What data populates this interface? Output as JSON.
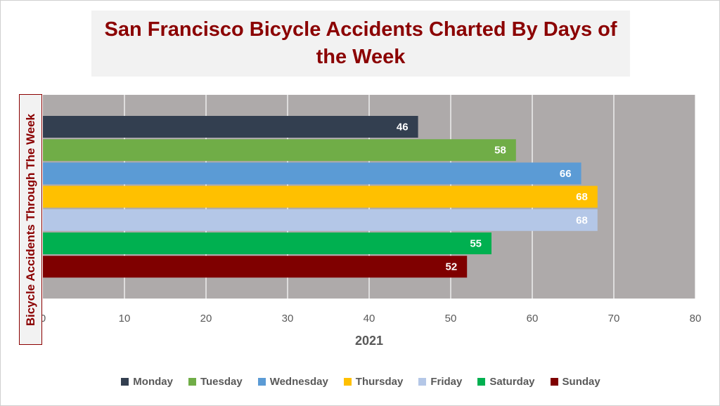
{
  "chart_data": {
    "type": "bar",
    "orientation": "horizontal",
    "title": "San Francisco Bicycle Accidents Charted By Days of the Week",
    "ylabel": "Bicycle Accidents Through The Week",
    "xlabel": "2021",
    "xlim": [
      0,
      80
    ],
    "xticks": [
      0,
      10,
      20,
      30,
      40,
      50,
      60,
      70,
      80
    ],
    "grid": true,
    "legend_position": "bottom",
    "series": [
      {
        "name": "Monday",
        "value": 46,
        "color": "#333f50"
      },
      {
        "name": "Tuesday",
        "value": 58,
        "color": "#70ad47"
      },
      {
        "name": "Wednesday",
        "value": 66,
        "color": "#5b9bd5"
      },
      {
        "name": "Thursday",
        "value": 68,
        "color": "#ffc000"
      },
      {
        "name": "Friday",
        "value": 68,
        "color": "#b4c7e7"
      },
      {
        "name": "Saturday",
        "value": 55,
        "color": "#00b050"
      },
      {
        "name": "Sunday",
        "value": 52,
        "color": "#7f0000"
      }
    ]
  },
  "colors": {
    "plot_background": "#aeaaaa",
    "gridline": "#ffffff",
    "title": "#8b0000"
  }
}
